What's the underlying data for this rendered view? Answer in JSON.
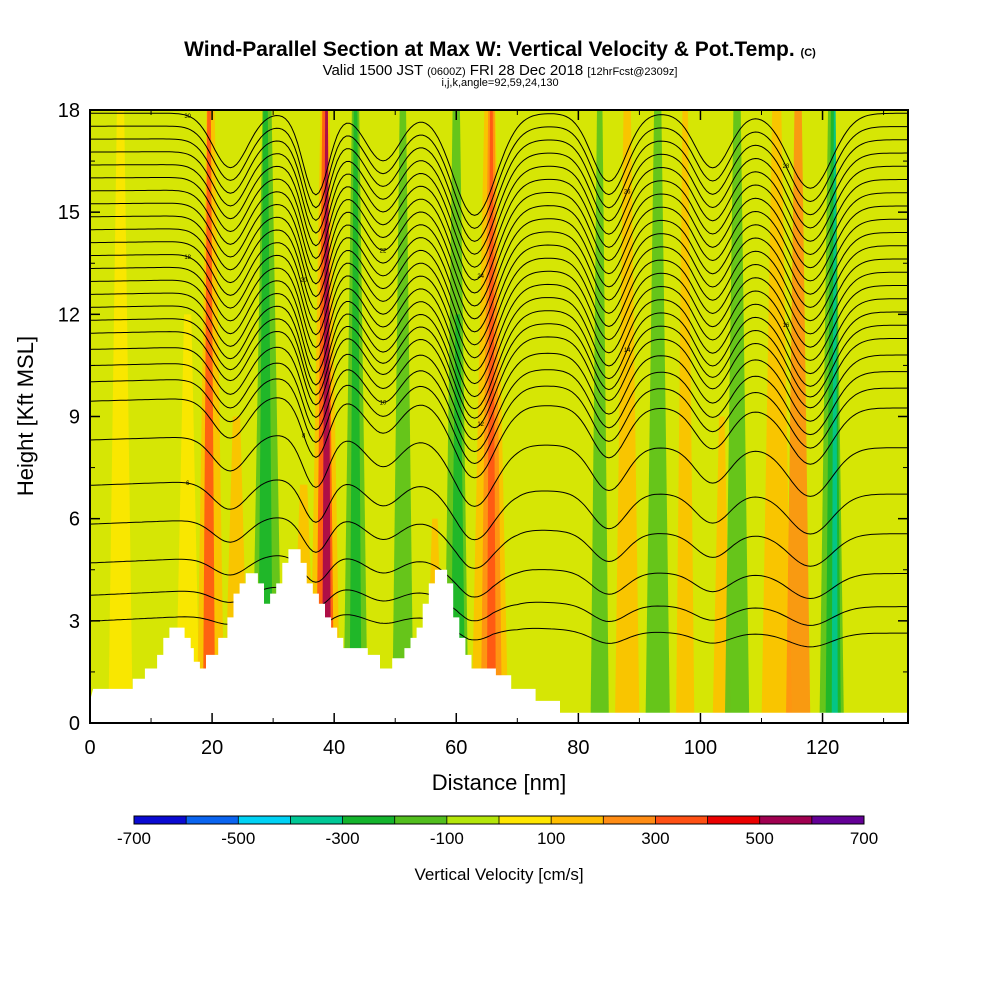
{
  "header": {
    "title": "Wind-Parallel Section at Max W: Vertical Velocity & Pot.Temp.",
    "title_units": "(C)",
    "subtitle_valid": "Valid 1500 JST",
    "subtitle_utc": "(0600Z)",
    "subtitle_date": "FRI 28 Dec 2018",
    "subtitle_fcst": "[12hrFcst@2309z]",
    "subtitle_indices": "i,j,k,angle=92,59,24,130"
  },
  "chart_data": {
    "type": "heatmap",
    "title": "Wind-Parallel Section at Max W: Vertical Velocity & Pot.Temp.",
    "xlabel": "Distance [nm]",
    "ylabel": "Height [Kft MSL]",
    "xlim": [
      0,
      134
    ],
    "ylim": [
      0,
      18
    ],
    "x_ticks": [
      0,
      20,
      40,
      60,
      80,
      100,
      120
    ],
    "y_ticks": [
      0,
      3,
      6,
      9,
      12,
      15,
      18
    ],
    "colorbar": {
      "label": "Vertical Velocity [cm/s]",
      "tick_labels": [
        "-700",
        "-500",
        "-300",
        "-100",
        "100",
        "300",
        "500",
        "700"
      ],
      "levels": [
        -700,
        -600,
        -500,
        -400,
        -300,
        -200,
        -100,
        0,
        100,
        200,
        300,
        400,
        500,
        600,
        700
      ],
      "colors": [
        "#0a0ad2",
        "#0a64f0",
        "#00d2f5",
        "#00c896",
        "#14b42d",
        "#52be1e",
        "#b4e60a",
        "#ffe600",
        "#ffbe00",
        "#ff8c14",
        "#ff5014",
        "#eb0000",
        "#a00050",
        "#640096"
      ]
    },
    "fill_bands": [
      {
        "x": 3,
        "width": 4,
        "ytop": 18,
        "color": "#ffe600"
      },
      {
        "x": 14,
        "width": 4,
        "ytop": 12,
        "color": "#ffe600"
      },
      {
        "x": 17.5,
        "width": 4.5,
        "ytop": 18,
        "color": "#ffbe00"
      },
      {
        "x": 18.5,
        "width": 2,
        "ytop": 18,
        "color": "#ff5014"
      },
      {
        "x": 22,
        "width": 4,
        "ytop": 9,
        "color": "#ffbe00"
      },
      {
        "x": 26.5,
        "width": 5,
        "ytop": 18,
        "color": "#52be1e"
      },
      {
        "x": 27.5,
        "width": 2.5,
        "ytop": 18,
        "color": "#14b42d"
      },
      {
        "x": 33,
        "width": 4,
        "ytop": 7,
        "color": "#ffbe00"
      },
      {
        "x": 36,
        "width": 5,
        "ytop": 18,
        "color": "#ffbe00"
      },
      {
        "x": 37,
        "width": 3,
        "ytop": 18,
        "color": "#ff5014"
      },
      {
        "x": 38,
        "width": 1.5,
        "ytop": 18,
        "color": "#a00050"
      },
      {
        "x": 41.5,
        "width": 4,
        "ytop": 18,
        "color": "#52be1e"
      },
      {
        "x": 42.5,
        "width": 2,
        "ytop": 18,
        "color": "#14b42d"
      },
      {
        "x": 49.5,
        "width": 3.5,
        "ytop": 18,
        "color": "#52be1e"
      },
      {
        "x": 55,
        "width": 3,
        "ytop": 6,
        "color": "#ffbe00"
      },
      {
        "x": 58,
        "width": 4,
        "ytop": 18,
        "color": "#52be1e"
      },
      {
        "x": 59,
        "width": 2.5,
        "ytop": 12,
        "color": "#14b42d"
      },
      {
        "x": 62.5,
        "width": 6,
        "ytop": 18,
        "color": "#ffbe00"
      },
      {
        "x": 64,
        "width": 3.5,
        "ytop": 18,
        "color": "#ff8c14"
      },
      {
        "x": 65,
        "width": 1.5,
        "ytop": 18,
        "color": "#ff5014"
      },
      {
        "x": 82,
        "width": 3,
        "ytop": 18,
        "color": "#52be1e"
      },
      {
        "x": 86,
        "width": 4,
        "ytop": 18,
        "color": "#ffbe00"
      },
      {
        "x": 91,
        "width": 4,
        "ytop": 18,
        "color": "#52be1e"
      },
      {
        "x": 96,
        "width": 3,
        "ytop": 18,
        "color": "#ffbe00"
      },
      {
        "x": 102,
        "width": 3,
        "ytop": 9,
        "color": "#ffbe00"
      },
      {
        "x": 104,
        "width": 4,
        "ytop": 18,
        "color": "#52be1e"
      },
      {
        "x": 110,
        "width": 5,
        "ytop": 18,
        "color": "#ffbe00"
      },
      {
        "x": 114,
        "width": 4,
        "ytop": 18,
        "color": "#ff8c14"
      },
      {
        "x": 119.5,
        "width": 4,
        "ytop": 18,
        "color": "#52be1e"
      },
      {
        "x": 120.5,
        "width": 2.5,
        "ytop": 18,
        "color": "#14b42d"
      },
      {
        "x": 121.5,
        "width": 1,
        "ytop": 18,
        "color": "#00c896"
      }
    ],
    "terrain": [
      [
        0,
        0.65
      ],
      [
        0.5,
        1.0
      ],
      [
        7,
        1.0
      ],
      [
        7,
        1.3
      ],
      [
        9,
        1.3
      ],
      [
        9,
        1.6
      ],
      [
        11,
        1.6
      ],
      [
        11,
        2.0
      ],
      [
        12,
        2.0
      ],
      [
        12,
        2.5
      ],
      [
        13,
        2.5
      ],
      [
        13,
        2.8
      ],
      [
        15.5,
        2.8
      ],
      [
        15.5,
        2.5
      ],
      [
        16.5,
        2.5
      ],
      [
        16.5,
        2.2
      ],
      [
        17,
        2.2
      ],
      [
        17,
        1.8
      ],
      [
        18,
        1.8
      ],
      [
        18,
        1.6
      ],
      [
        19,
        1.6
      ],
      [
        19,
        2.0
      ],
      [
        21,
        2.0
      ],
      [
        21,
        2.5
      ],
      [
        22.5,
        2.5
      ],
      [
        22.5,
        3.1
      ],
      [
        23.5,
        3.1
      ],
      [
        23.5,
        3.8
      ],
      [
        24.5,
        3.8
      ],
      [
        24.5,
        4.1
      ],
      [
        25.5,
        4.1
      ],
      [
        25.5,
        4.4
      ],
      [
        27.5,
        4.4
      ],
      [
        27.5,
        4.1
      ],
      [
        28.5,
        4.1
      ],
      [
        28.5,
        3.5
      ],
      [
        29.5,
        3.5
      ],
      [
        29.5,
        3.8
      ],
      [
        30.5,
        3.8
      ],
      [
        30.5,
        4.1
      ],
      [
        31.5,
        4.1
      ],
      [
        31.5,
        4.7
      ],
      [
        32.5,
        4.7
      ],
      [
        32.5,
        5.1
      ],
      [
        34.5,
        5.1
      ],
      [
        34.5,
        4.7
      ],
      [
        35.5,
        4.7
      ],
      [
        35.5,
        4.1
      ],
      [
        36.5,
        4.1
      ],
      [
        36.5,
        3.8
      ],
      [
        37.5,
        3.8
      ],
      [
        37.5,
        3.5
      ],
      [
        38.5,
        3.5
      ],
      [
        38.5,
        3.1
      ],
      [
        39.5,
        3.1
      ],
      [
        39.5,
        2.8
      ],
      [
        40.5,
        2.8
      ],
      [
        40.5,
        2.5
      ],
      [
        41.5,
        2.5
      ],
      [
        41.5,
        2.2
      ],
      [
        45.5,
        2.2
      ],
      [
        45.5,
        2.0
      ],
      [
        47.5,
        2.0
      ],
      [
        47.5,
        1.6
      ],
      [
        49.5,
        1.6
      ],
      [
        49.5,
        1.9
      ],
      [
        51.5,
        1.9
      ],
      [
        51.5,
        2.2
      ],
      [
        52.5,
        2.2
      ],
      [
        52.5,
        2.5
      ],
      [
        53.5,
        2.5
      ],
      [
        53.5,
        2.8
      ],
      [
        54.5,
        2.8
      ],
      [
        54.5,
        3.5
      ],
      [
        55.5,
        3.5
      ],
      [
        55.5,
        4.1
      ],
      [
        56.5,
        4.1
      ],
      [
        56.5,
        4.5
      ],
      [
        58.5,
        4.5
      ],
      [
        58.5,
        4.1
      ],
      [
        59.5,
        4.1
      ],
      [
        59.5,
        3.1
      ],
      [
        60.5,
        3.1
      ],
      [
        60.5,
        2.5
      ],
      [
        61.5,
        2.5
      ],
      [
        61.5,
        2.0
      ],
      [
        62.5,
        2.0
      ],
      [
        62.5,
        1.6
      ],
      [
        66.5,
        1.6
      ],
      [
        66.5,
        1.4
      ],
      [
        69,
        1.4
      ],
      [
        69,
        1.0
      ],
      [
        73,
        1.0
      ],
      [
        73,
        0.65
      ],
      [
        77,
        0.65
      ],
      [
        77,
        0.3
      ],
      [
        134,
        0.3
      ],
      [
        134,
        0
      ],
      [
        0,
        0
      ]
    ],
    "theta_contour_base": [
      [
        0,
        0.9
      ],
      [
        10,
        1.0
      ],
      [
        30,
        1.2
      ],
      [
        40,
        1.2
      ],
      [
        50,
        1.1
      ],
      [
        60,
        1.0
      ],
      [
        62,
        0.9
      ],
      [
        66,
        0.9
      ],
      [
        70,
        0.7
      ],
      [
        80,
        0.6
      ],
      [
        100,
        0.5
      ],
      [
        110,
        0.5
      ],
      [
        134,
        0.5
      ]
    ],
    "theta_contour_levels": [
      2.2,
      3.0,
      4.0,
      5.2,
      6.4,
      7.8,
      9.0,
      9.6,
      10.1,
      10.6,
      11.1,
      11.5,
      11.9,
      12.3,
      12.7,
      13.1,
      13.5,
      13.9,
      14.3,
      14.7,
      15.1,
      15.5,
      15.9,
      16.3,
      16.7,
      17.1,
      17.5,
      17.9
    ],
    "theta_waves": [
      {
        "center": 23,
        "width": 4,
        "amp": 1.6
      },
      {
        "center": 37,
        "width": 3,
        "amp": 2.4
      },
      {
        "center": 48,
        "width": 4,
        "amp": 1.4
      },
      {
        "center": 63,
        "width": 5,
        "amp": 3.0
      },
      {
        "center": 85,
        "width": 4,
        "amp": 2.0
      },
      {
        "center": 102,
        "width": 4,
        "amp": 1.6
      },
      {
        "center": 118,
        "width": 5,
        "amp": 2.2
      }
    ],
    "contour_labels": [
      "6",
      "8",
      "10",
      "12",
      "14",
      "16",
      "18",
      "20",
      "22",
      "24",
      "26",
      "28",
      "30"
    ]
  },
  "colors": {
    "background": "#ffe600",
    "terrain": "#ffffff",
    "contour": "#000000"
  }
}
